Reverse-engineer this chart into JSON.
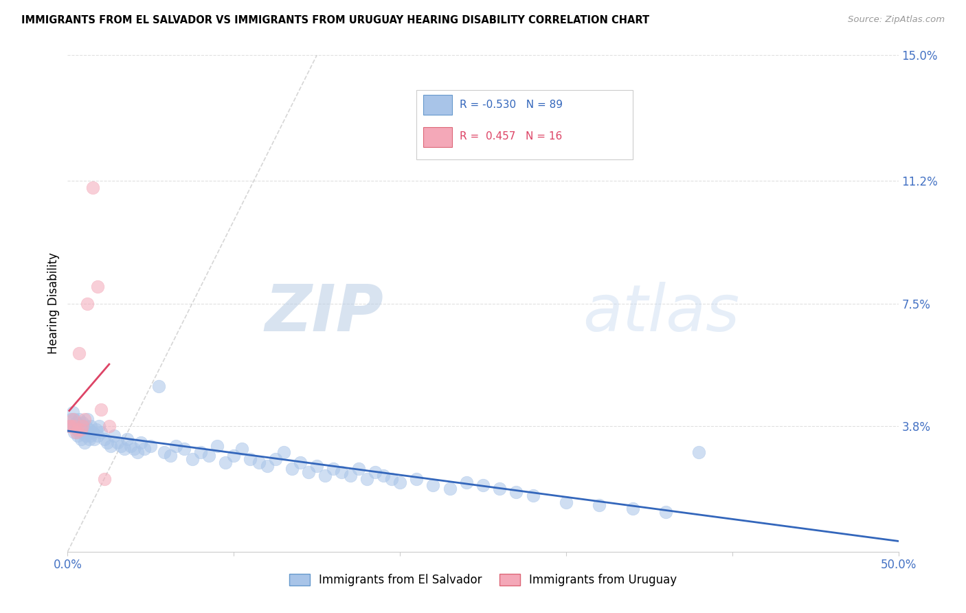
{
  "title": "IMMIGRANTS FROM EL SALVADOR VS IMMIGRANTS FROM URUGUAY HEARING DISABILITY CORRELATION CHART",
  "source": "Source: ZipAtlas.com",
  "ylabel": "Hearing Disability",
  "xlim": [
    0.0,
    0.5
  ],
  "ylim": [
    0.0,
    0.15
  ],
  "blue_color": "#a8c4e8",
  "pink_color": "#f4a8b8",
  "blue_line_color": "#3366bb",
  "pink_line_color": "#dd4466",
  "dash_line_color": "#cccccc",
  "watermark_color": "#d0e0f5",
  "grid_color": "#e0e0e0",
  "right_tick_color": "#4472c4",
  "xtick_color": "#4472c4",
  "el_salvador_x": [
    0.001,
    0.002,
    0.003,
    0.003,
    0.004,
    0.004,
    0.005,
    0.005,
    0.006,
    0.006,
    0.007,
    0.007,
    0.008,
    0.008,
    0.009,
    0.009,
    0.01,
    0.01,
    0.011,
    0.011,
    0.012,
    0.012,
    0.013,
    0.013,
    0.014,
    0.014,
    0.015,
    0.016,
    0.017,
    0.018,
    0.019,
    0.02,
    0.022,
    0.024,
    0.026,
    0.028,
    0.03,
    0.032,
    0.034,
    0.036,
    0.038,
    0.04,
    0.042,
    0.044,
    0.046,
    0.05,
    0.055,
    0.058,
    0.062,
    0.065,
    0.07,
    0.075,
    0.08,
    0.085,
    0.09,
    0.095,
    0.1,
    0.105,
    0.11,
    0.115,
    0.12,
    0.125,
    0.13,
    0.135,
    0.14,
    0.145,
    0.15,
    0.155,
    0.16,
    0.165,
    0.17,
    0.175,
    0.18,
    0.185,
    0.19,
    0.195,
    0.2,
    0.21,
    0.22,
    0.23,
    0.24,
    0.25,
    0.26,
    0.27,
    0.28,
    0.3,
    0.32,
    0.34,
    0.36,
    0.38
  ],
  "el_salvador_y": [
    0.038,
    0.04,
    0.038,
    0.042,
    0.036,
    0.04,
    0.037,
    0.039,
    0.035,
    0.038,
    0.036,
    0.04,
    0.034,
    0.038,
    0.036,
    0.039,
    0.033,
    0.037,
    0.035,
    0.038,
    0.036,
    0.04,
    0.034,
    0.037,
    0.035,
    0.038,
    0.036,
    0.034,
    0.037,
    0.035,
    0.038,
    0.036,
    0.034,
    0.033,
    0.032,
    0.035,
    0.033,
    0.032,
    0.031,
    0.034,
    0.032,
    0.031,
    0.03,
    0.033,
    0.031,
    0.032,
    0.05,
    0.03,
    0.029,
    0.032,
    0.031,
    0.028,
    0.03,
    0.029,
    0.032,
    0.027,
    0.029,
    0.031,
    0.028,
    0.027,
    0.026,
    0.028,
    0.03,
    0.025,
    0.027,
    0.024,
    0.026,
    0.023,
    0.025,
    0.024,
    0.023,
    0.025,
    0.022,
    0.024,
    0.023,
    0.022,
    0.021,
    0.022,
    0.02,
    0.019,
    0.021,
    0.02,
    0.019,
    0.018,
    0.017,
    0.015,
    0.014,
    0.013,
    0.012,
    0.03
  ],
  "uruguay_x": [
    0.001,
    0.002,
    0.003,
    0.004,
    0.005,
    0.006,
    0.007,
    0.008,
    0.009,
    0.01,
    0.012,
    0.015,
    0.018,
    0.02,
    0.022,
    0.025
  ],
  "uruguay_y": [
    0.038,
    0.038,
    0.04,
    0.038,
    0.036,
    0.037,
    0.06,
    0.037,
    0.038,
    0.04,
    0.075,
    0.11,
    0.08,
    0.043,
    0.022,
    0.038
  ]
}
